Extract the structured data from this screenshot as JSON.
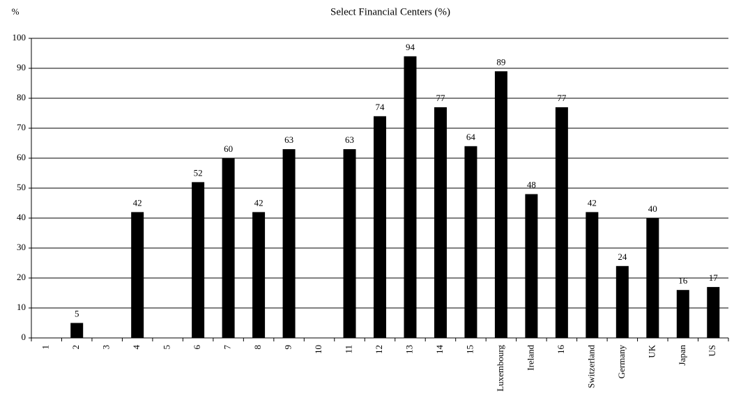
{
  "chart_data": {
    "type": "bar",
    "title": "Select Financial Centers (%)",
    "y_label": "%",
    "categories": [
      "1",
      "2",
      "3",
      "4",
      "5",
      "6",
      "7",
      "8",
      "9",
      "10",
      "11",
      "12",
      "13",
      "14",
      "15",
      "Luxembourg",
      "Ireland",
      "16",
      "Switzerland",
      "Germany",
      "UK",
      "Japan",
      "US"
    ],
    "values": [
      null,
      5,
      null,
      42,
      null,
      52,
      60,
      42,
      63,
      null,
      63,
      74,
      94,
      77,
      64,
      89,
      48,
      77,
      42,
      24,
      40,
      16,
      17
    ],
    "color": "#000000",
    "ylim": [
      0,
      100
    ],
    "yticks": [
      0,
      10,
      20,
      30,
      40,
      50,
      60,
      70,
      80,
      90,
      100
    ],
    "grid": true
  }
}
